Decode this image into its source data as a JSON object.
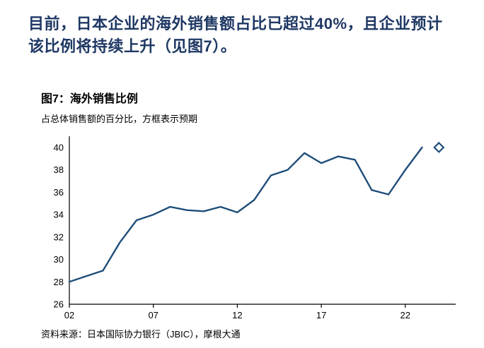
{
  "paragraph": "目前，日本企业的海外销售额占比已超过40%，且企业预计该比例将持续上升（见图7）。",
  "figure": {
    "title": "图7：海外销售比例",
    "subtitle": "占总体销售额的百分比，方框表示预期",
    "source": "资料来源：日本国际协力银行（JBIC），摩根大通"
  },
  "chart_data": {
    "type": "line",
    "title": "图7：海外销售比例",
    "subtitle": "占总体销售额的百分比，方框表示预期",
    "x": [
      2002,
      2003,
      2004,
      2005,
      2006,
      2007,
      2008,
      2009,
      2010,
      2011,
      2012,
      2013,
      2014,
      2015,
      2016,
      2017,
      2018,
      2019,
      2020,
      2021,
      2022,
      2023
    ],
    "series": [
      {
        "name": "海外销售比例",
        "values": [
          28.0,
          28.5,
          29.0,
          31.5,
          33.5,
          34.0,
          34.7,
          34.4,
          34.3,
          34.7,
          34.2,
          35.3,
          37.5,
          38.0,
          39.5,
          38.6,
          39.2,
          38.9,
          36.2,
          35.8,
          38.0,
          40.0
        ]
      }
    ],
    "forecast_point": {
      "x": 2024,
      "value": 40.0,
      "marker": "diamond-outline"
    },
    "x_ticks": [
      2002,
      2007,
      2012,
      2017,
      2022
    ],
    "x_tick_labels": [
      "02",
      "07",
      "12",
      "17",
      "22"
    ],
    "y_ticks": [
      26,
      28,
      30,
      32,
      34,
      36,
      38,
      40
    ],
    "ylim": [
      26,
      41
    ],
    "xlabel": "",
    "ylabel": "",
    "grid": false,
    "legend": false,
    "line_color": "#1F4E79",
    "axis_color": "#000000"
  },
  "colors": {
    "paragraph_text": "#1F3864",
    "line": "#1F4E79",
    "axis": "#000000",
    "background": "#FFFFFF"
  }
}
